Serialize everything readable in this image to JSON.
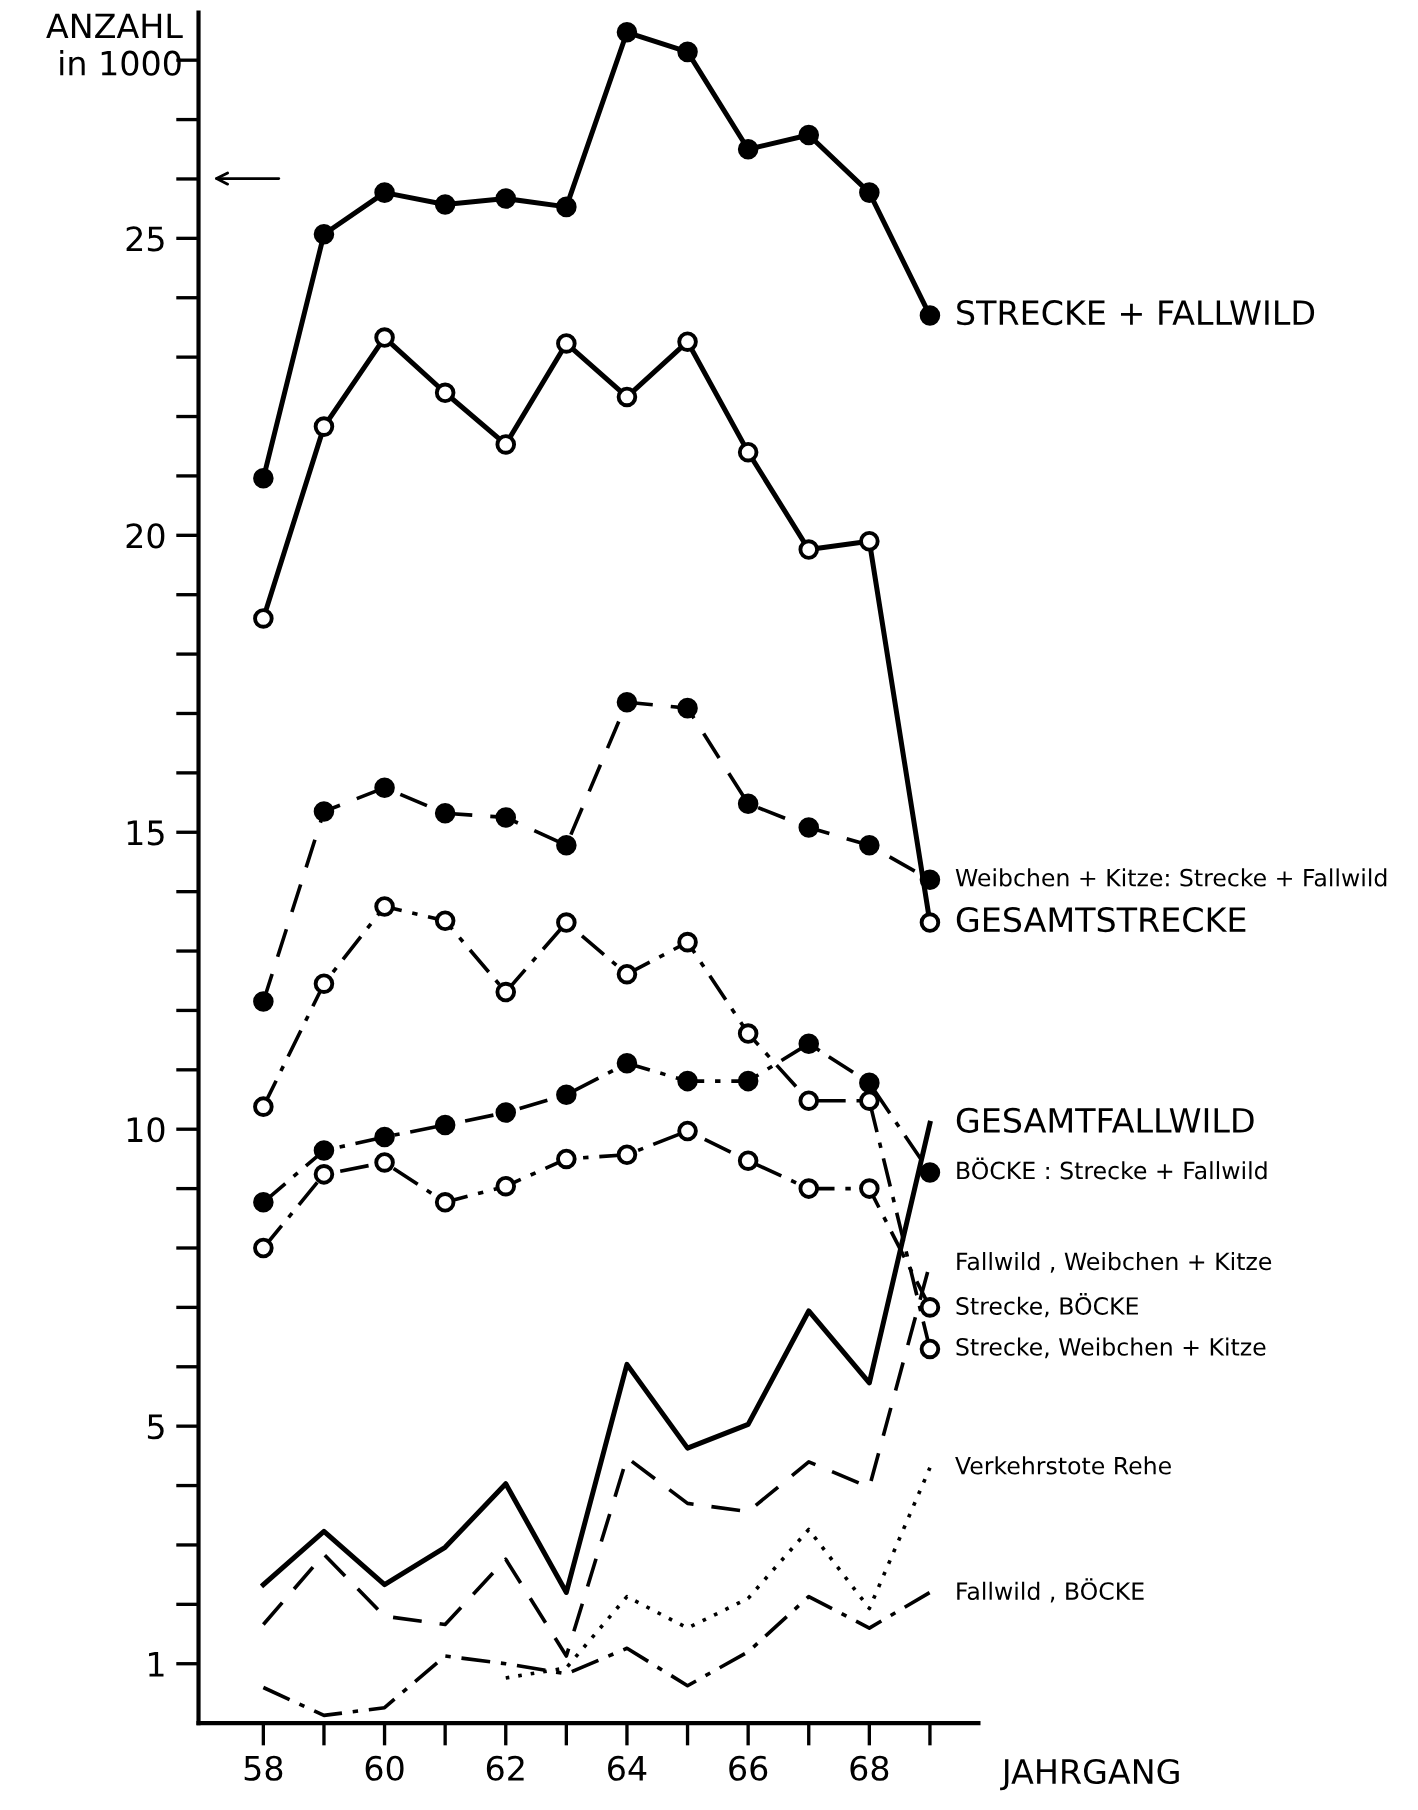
{
  "chart_data": {
    "type": "line",
    "xlabel": "JAHRGANG",
    "ylabel": "ANZAHL in 1000",
    "x": [
      58,
      59,
      60,
      61,
      62,
      63,
      64,
      65,
      66,
      67,
      68,
      69
    ],
    "series": [
      {
        "name": "STRECKE + FALLWILD",
        "color": "#000000",
        "line_style": "solid",
        "marker": "circle",
        "values": [
          20.96,
          25.07,
          25.77,
          25.57,
          25.67,
          25.53,
          28.47,
          28.14,
          26.5,
          26.74,
          25.77,
          23.7
        ]
      },
      {
        "name": "GESAMTSTRECKE",
        "color": "#000000",
        "line_style": "solid",
        "marker": "circle_open",
        "values": [
          18.6,
          21.83,
          23.33,
          22.4,
          21.53,
          23.23,
          22.33,
          23.26,
          21.4,
          19.76,
          19.9,
          13.48
        ]
      },
      {
        "name": "Weibchen + Kitze: Strecke + Fallwild",
        "color": "#000000",
        "line_style": "dashed",
        "marker": "circle",
        "values": [
          12.15,
          15.35,
          15.75,
          15.32,
          15.25,
          14.78,
          17.19,
          17.09,
          15.48,
          15.08,
          14.78,
          14.2
        ]
      },
      {
        "name": "Strecke, Weibchen + Kitze",
        "color": "#000000",
        "line_style": "dashdot",
        "marker": "circle_open",
        "values": [
          10.38,
          12.45,
          13.75,
          13.51,
          12.31,
          13.48,
          12.61,
          13.15,
          11.61,
          10.48,
          10.48,
          6.3
        ]
      },
      {
        "name": "BÖCKE : Strecke + Fallwild",
        "color": "#000000",
        "line_style": "dashdot",
        "marker": "circle",
        "values": [
          8.77,
          9.64,
          9.87,
          10.07,
          10.28,
          10.58,
          11.11,
          10.81,
          10.81,
          11.44,
          10.78,
          9.27
        ]
      },
      {
        "name": "Strecke, BÖCKE",
        "color": "#000000",
        "line_style": "dashdot",
        "marker": "circle_open",
        "values": [
          8.0,
          9.24,
          9.44,
          8.77,
          9.04,
          9.5,
          9.57,
          9.97,
          9.47,
          9.0,
          9.0,
          7.0
        ]
      },
      {
        "name": "GESAMTFALLWILD",
        "color": "#000000",
        "line_style": "solid",
        "marker": "none",
        "values": [
          2.33,
          3.23,
          2.33,
          2.96,
          4.03,
          2.2,
          6.04,
          4.63,
          5.03,
          6.94,
          5.73,
          10.1
        ]
      },
      {
        "name": "Fallwild , Weibchen + Kitze",
        "color": "#000000",
        "line_style": "dashed",
        "marker": "none",
        "values": [
          1.66,
          2.84,
          1.8,
          1.66,
          2.76,
          1.13,
          4.47,
          3.7,
          3.56,
          4.4,
          3.97,
          7.74
        ]
      },
      {
        "name": "Verkehrstote Rehe",
        "color": "#000000",
        "line_style": "dotted",
        "marker": "none",
        "values": [
          null,
          null,
          null,
          null,
          0.76,
          0.93,
          2.13,
          1.6,
          2.1,
          3.26,
          1.93,
          4.3
        ]
      },
      {
        "name": "Fallwild , BÖCKE",
        "color": "#000000",
        "line_style": "dashdot",
        "marker": "none",
        "values": [
          0.6,
          0.13,
          0.26,
          1.13,
          1.0,
          0.83,
          1.26,
          0.63,
          1.2,
          2.13,
          1.6,
          2.2
        ]
      }
    ],
    "xlim": [
      56.93,
      69.8
    ],
    "ylim": [
      0,
      28.8
    ],
    "xticks": [
      58,
      {
        "value": 59,
        "label": null
      },
      60,
      {
        "value": 61,
        "label": null
      },
      62,
      {
        "value": 63,
        "label": null
      },
      64,
      {
        "value": 65,
        "label": null
      },
      66,
      {
        "value": 67,
        "label": null
      },
      68,
      {
        "value": 69,
        "label": null
      }
    ],
    "yticks": [
      1,
      {
        "value": 2,
        "label": null
      },
      {
        "value": 3,
        "label": null
      },
      {
        "value": 4,
        "label": null
      },
      5,
      {
        "value": 6,
        "label": null
      },
      {
        "value": 7,
        "label": null
      },
      {
        "value": 8,
        "label": null
      },
      {
        "value": 9,
        "label": null
      },
      10,
      {
        "value": 11,
        "label": null
      },
      {
        "value": 12,
        "label": null
      },
      {
        "value": 13,
        "label": null
      },
      {
        "value": 14,
        "label": null
      },
      15,
      {
        "value": 16,
        "label": null
      },
      {
        "value": 17,
        "label": null
      },
      {
        "value": 18,
        "label": null
      },
      {
        "value": 19,
        "label": null
      },
      20,
      {
        "value": 21,
        "label": null
      },
      {
        "value": 22,
        "label": null
      },
      {
        "value": 23,
        "label": null
      },
      {
        "value": 24,
        "label": null
      },
      25,
      {
        "value": 26,
        "label": null
      },
      {
        "value": 27,
        "label": null
      },
      {
        "value": 28,
        "label": null
      }
    ],
    "grid": false,
    "legend": false
  }
}
